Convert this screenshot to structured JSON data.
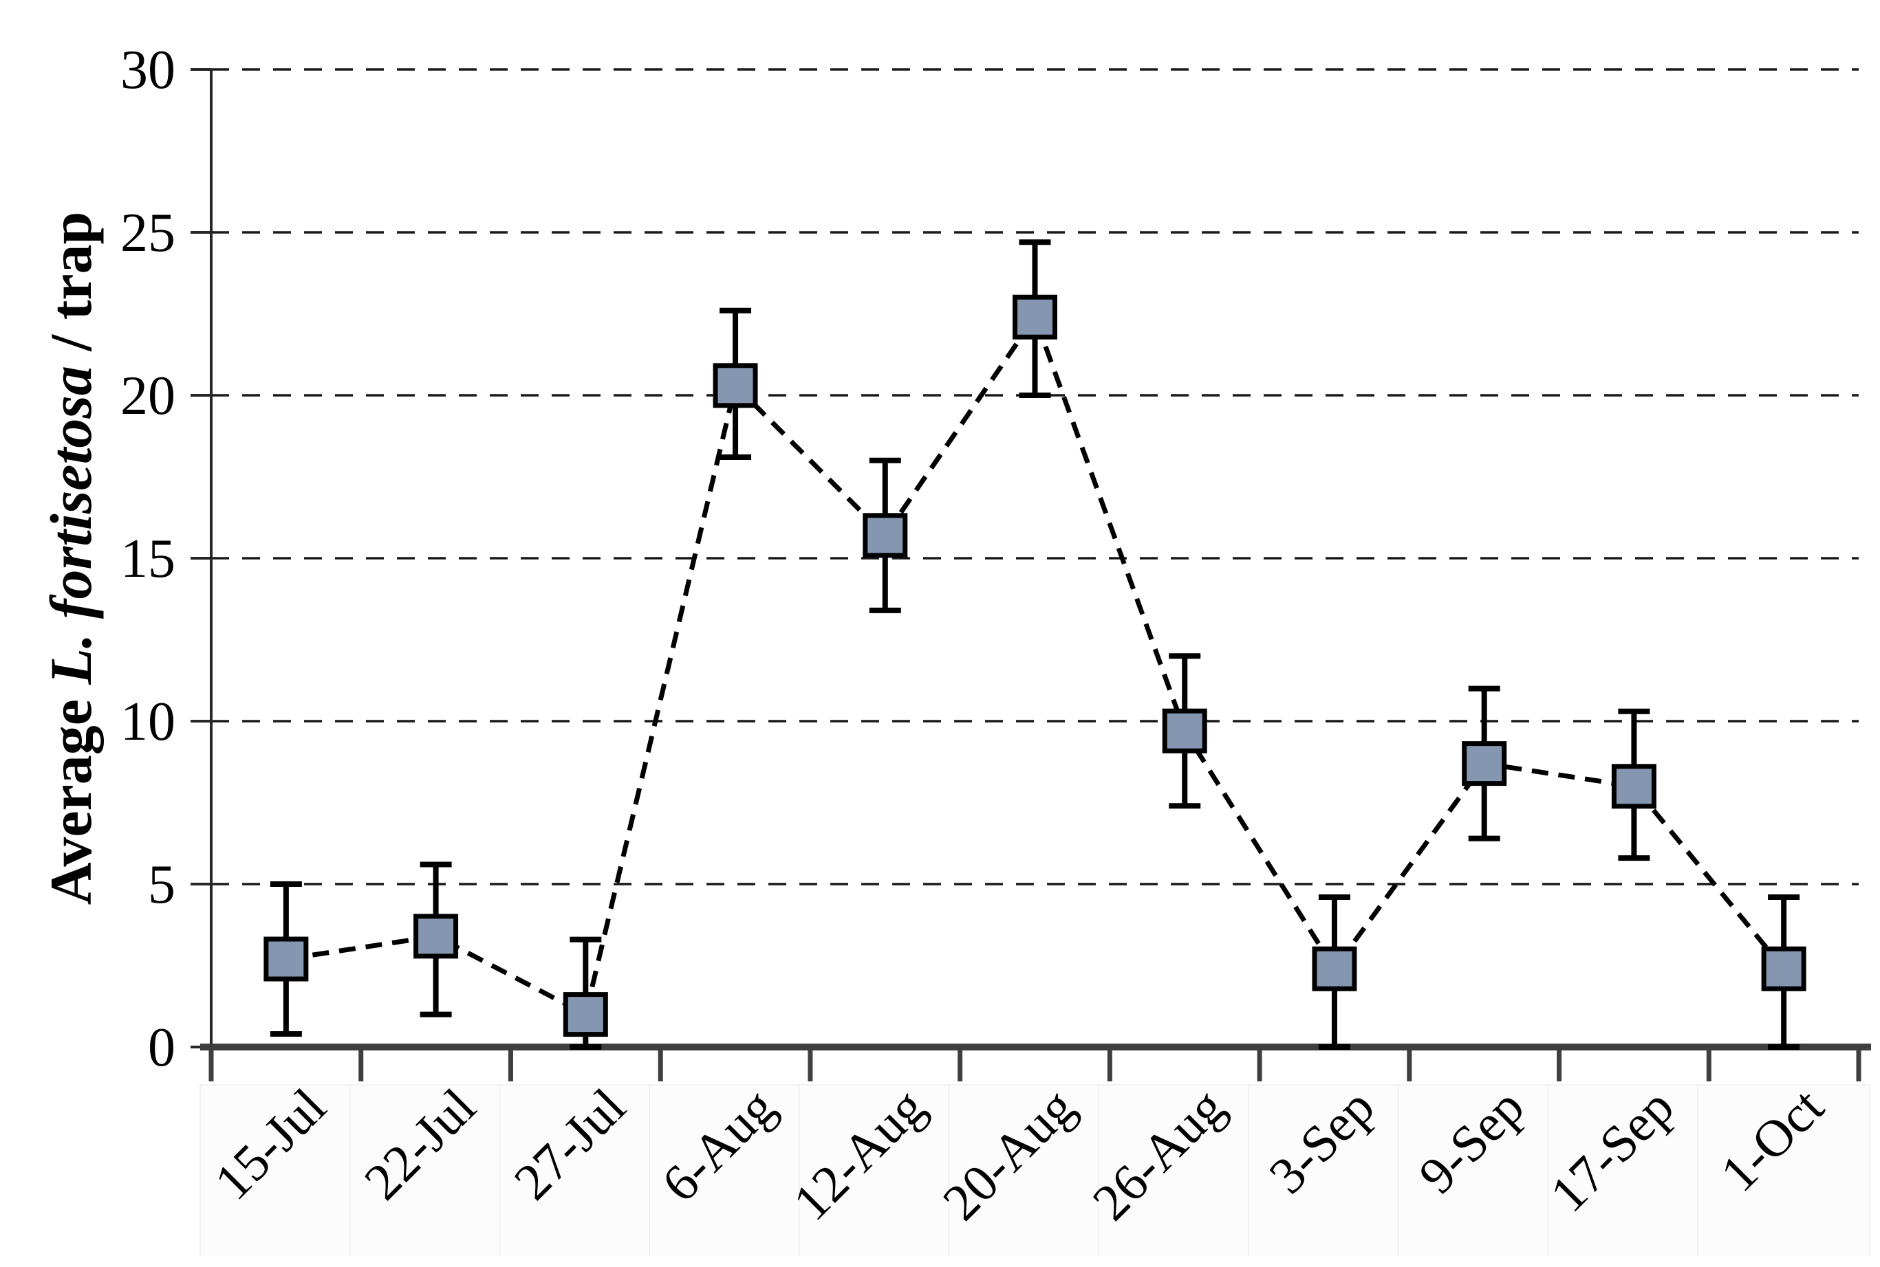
{
  "figure": {
    "background": "#ffffff",
    "description": "Scatter-line chart of average L. fortisetosa per trap across sampling dates, square markers with error bars, dashed connector line, dashed horizontal gridlines"
  },
  "chart_data": {
    "type": "line",
    "title": "",
    "categories": [
      "15-Jul",
      "22-Jul",
      "27-Jul",
      "6-Aug",
      "12-Aug",
      "20-Aug",
      "26-Aug",
      "3-Sep",
      "9-Sep",
      "17-Sep",
      "1-Oct"
    ],
    "series": [
      {
        "name": "Average L. fortisetosa / trap",
        "values": [
          2.7,
          3.4,
          1.0,
          20.3,
          15.7,
          22.4,
          9.7,
          2.4,
          8.7,
          8.0,
          2.4
        ],
        "error_upper": [
          5.0,
          5.6,
          3.3,
          22.6,
          18.0,
          24.7,
          12.0,
          4.6,
          11.0,
          10.3,
          4.6
        ],
        "error_lower": [
          0.4,
          1.0,
          0.0,
          18.1,
          13.4,
          20.0,
          7.4,
          0.0,
          6.4,
          5.8,
          0.0
        ]
      }
    ],
    "xlabel": "",
    "ylabel_plain": "Average L. fortisetosa / trap",
    "ylabel_parts": [
      {
        "text": "Average ",
        "italic": false
      },
      {
        "text": "L. fortisetosa",
        "italic": true
      },
      {
        "text": " / trap",
        "italic": false
      }
    ],
    "ylim": [
      0,
      30
    ],
    "yticks": [
      0,
      5,
      10,
      15,
      20,
      25,
      30
    ],
    "grid": "horizontal-dashed",
    "legend_position": "none",
    "x_tick_rotation_deg": -45,
    "colors": {
      "marker_fill": "#8496B0",
      "marker_border": "#000000",
      "error_bar": "#000000",
      "connector_line": "#000000",
      "gridline": "#1a1a1a",
      "y_axis_line": "#262626",
      "x_axis_line": "#3f3f3f",
      "text": "#000000",
      "label_box_fill": "#fcfcfc",
      "label_box_border": "#f2f2f2"
    }
  }
}
